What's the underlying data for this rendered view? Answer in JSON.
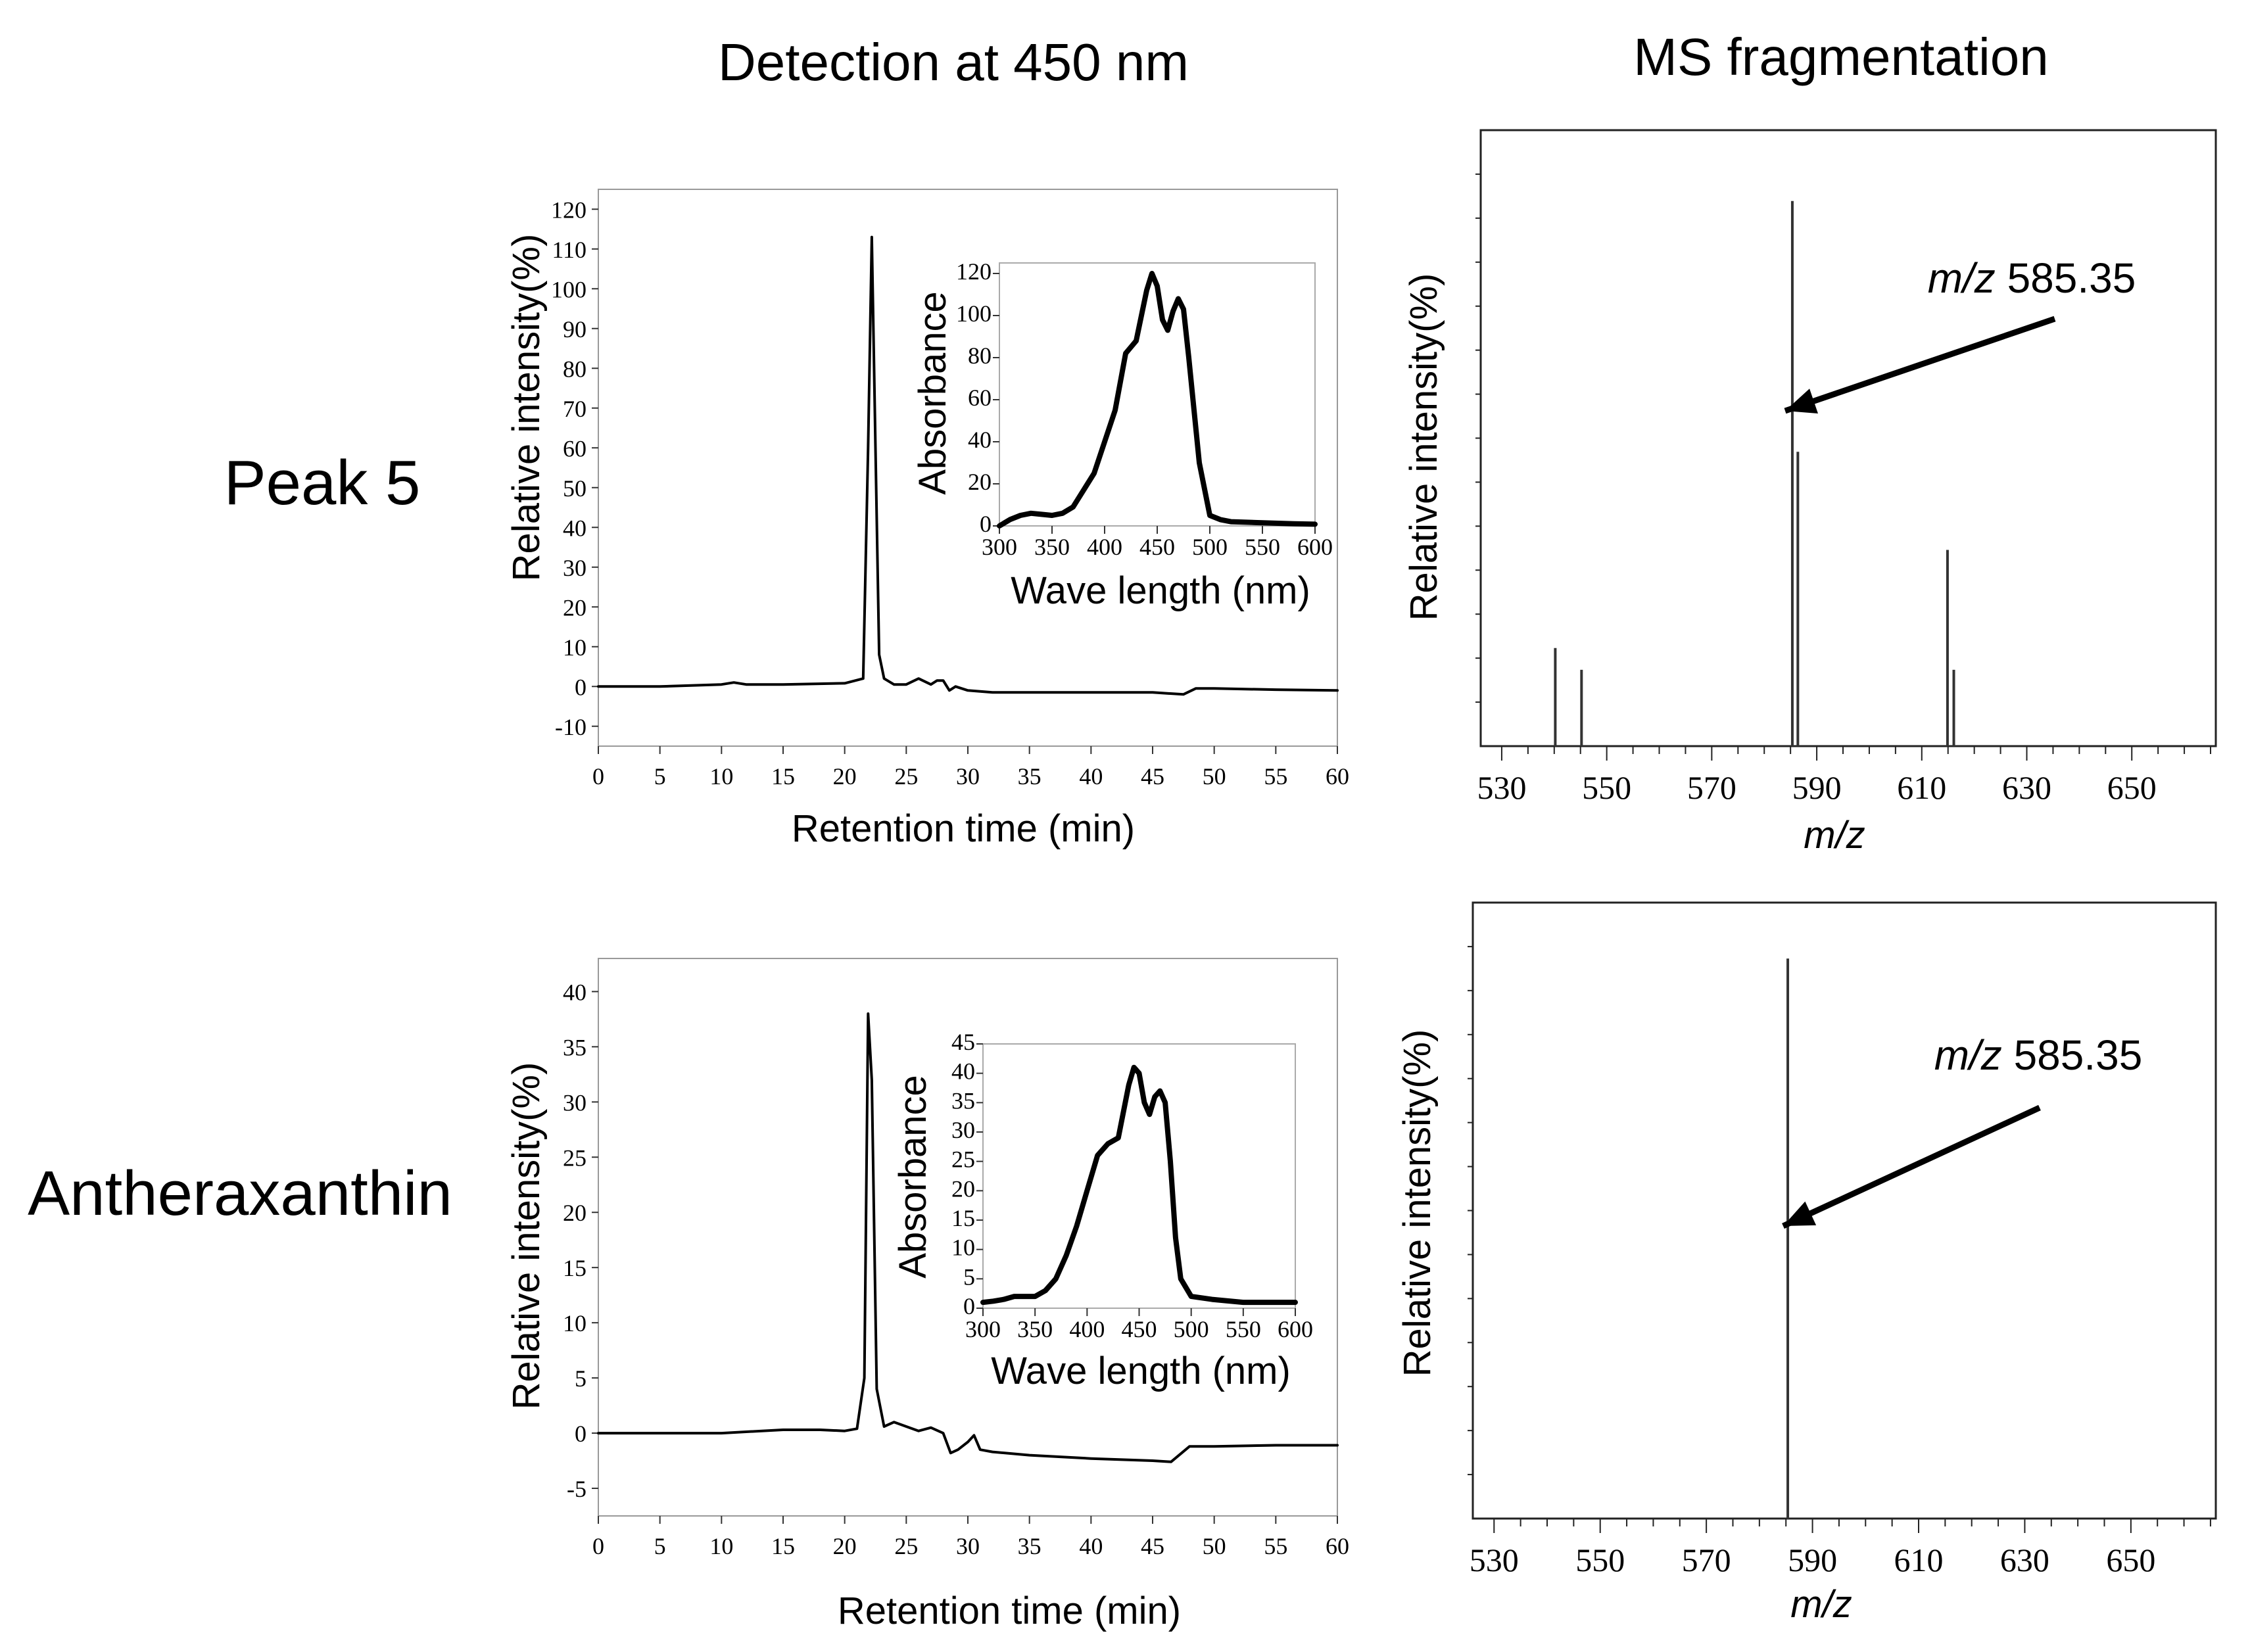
{
  "headings": {
    "left": "Detection at 450 nm",
    "right": "MS fragmentation"
  },
  "rows": [
    {
      "label": "Peak 5"
    },
    {
      "label": "Antheraxanthin"
    }
  ],
  "chart_data": [
    {
      "id": "hplc-peak5",
      "type": "line",
      "title": "Detection at 450 nm",
      "xlabel": "Retention time (min)",
      "ylabel": "Relative intensity(%)",
      "xlim": [
        0,
        60
      ],
      "ylim": [
        -15,
        125
      ],
      "xticks": [
        0,
        5,
        10,
        15,
        20,
        25,
        30,
        35,
        40,
        45,
        50,
        55,
        60
      ],
      "yticks": [
        -10,
        0,
        10,
        20,
        30,
        40,
        50,
        60,
        70,
        80,
        90,
        100,
        110,
        120
      ],
      "x": [
        0,
        5,
        10,
        11,
        12,
        15,
        20,
        21.5,
        21.9,
        22.2,
        22.5,
        22.8,
        23.2,
        24,
        25,
        26,
        27,
        27.5,
        28,
        28.5,
        29,
        30,
        32,
        35,
        40,
        45,
        47.5,
        48.5,
        50,
        55,
        60
      ],
      "y": [
        0,
        0,
        0.5,
        1,
        0.5,
        0.5,
        0.8,
        2,
        60,
        113,
        60,
        8,
        2,
        0.5,
        0.5,
        2,
        0.5,
        1.5,
        1.5,
        -1,
        0,
        -1,
        -1.5,
        -1.5,
        -1.5,
        -1.5,
        -2,
        -0.5,
        -0.5,
        -0.8,
        -1
      ]
    },
    {
      "id": "uv-peak5",
      "type": "line",
      "inset": true,
      "xlabel": "Wave length (nm)",
      "ylabel": "Absorbance",
      "xlim": [
        300,
        600
      ],
      "ylim": [
        0,
        125
      ],
      "xticks": [
        300,
        350,
        400,
        450,
        500,
        550,
        600
      ],
      "yticks": [
        0,
        20,
        40,
        60,
        80,
        100,
        120
      ],
      "x": [
        300,
        310,
        320,
        330,
        340,
        350,
        360,
        370,
        380,
        390,
        400,
        410,
        420,
        425,
        430,
        440,
        445,
        450,
        455,
        460,
        465,
        470,
        475,
        480,
        485,
        490,
        500,
        510,
        520,
        550,
        580,
        600
      ],
      "y": [
        0,
        3,
        5,
        6,
        5.5,
        5,
        6,
        9,
        17,
        25,
        40,
        55,
        82,
        85,
        88,
        112,
        120,
        114,
        98,
        93,
        102,
        108,
        103,
        80,
        55,
        30,
        5,
        3,
        2,
        1.5,
        1,
        0.8
      ]
    },
    {
      "id": "ms-peak5",
      "type": "bar",
      "title": "MS fragmentation",
      "xlabel": "m/z",
      "ylabel": "Relative intensity(%)",
      "xlim": [
        526,
        666
      ],
      "ylim": [
        0,
        113
      ],
      "xticks": [
        530,
        550,
        570,
        590,
        610,
        630,
        650
      ],
      "x": [
        540.2,
        545.2,
        585.35,
        586.4,
        614.9,
        616.1
      ],
      "values": [
        18,
        14,
        100,
        54,
        36,
        14
      ],
      "annotation": {
        "label_italic": "m/z",
        "label": "585.35",
        "target_x": 585.35
      }
    },
    {
      "id": "hplc-antheraxanthin",
      "type": "line",
      "xlabel": "Retention time (min)",
      "ylabel": "Relative intensity(%)",
      "xlim": [
        0,
        60
      ],
      "ylim": [
        -7.5,
        43
      ],
      "xticks": [
        0,
        5,
        10,
        15,
        20,
        25,
        30,
        35,
        40,
        45,
        50,
        55,
        60
      ],
      "yticks": [
        -5,
        0,
        5,
        10,
        15,
        20,
        25,
        30,
        35,
        40
      ],
      "x": [
        0,
        5,
        10,
        15,
        18,
        20,
        21,
        21.6,
        21.9,
        22.2,
        22.6,
        23.2,
        24,
        24.5,
        25,
        26,
        27,
        28,
        28.6,
        29.2,
        30,
        30.5,
        31,
        32,
        35,
        40,
        45,
        46.5,
        48,
        50,
        55,
        60
      ],
      "y": [
        0,
        0,
        0,
        0.3,
        0.3,
        0.2,
        0.4,
        5,
        38,
        32,
        4,
        0.6,
        1,
        0.8,
        0.6,
        0.2,
        0.5,
        0,
        -1.8,
        -1.5,
        -0.8,
        -0.2,
        -1.5,
        -1.7,
        -2,
        -2.3,
        -2.5,
        -2.6,
        -1.2,
        -1.2,
        -1.1,
        -1.1
      ]
    },
    {
      "id": "uv-antheraxanthin",
      "type": "line",
      "inset": true,
      "xlabel": "Wave length (nm)",
      "ylabel": "Absorbance",
      "xlim": [
        300,
        600
      ],
      "ylim": [
        0,
        45
      ],
      "xticks": [
        300,
        350,
        400,
        450,
        500,
        550,
        600
      ],
      "yticks": [
        0,
        5,
        10,
        15,
        20,
        25,
        30,
        35,
        40,
        45
      ],
      "x": [
        300,
        310,
        320,
        330,
        340,
        350,
        360,
        370,
        380,
        390,
        400,
        410,
        420,
        425,
        430,
        440,
        445,
        450,
        455,
        460,
        465,
        470,
        475,
        480,
        485,
        490,
        500,
        520,
        550,
        600
      ],
      "y": [
        1,
        1.2,
        1.5,
        2,
        2,
        2,
        3,
        5,
        9,
        14,
        20,
        26,
        28,
        28.5,
        29,
        38,
        41,
        40,
        35,
        33,
        36,
        37,
        35,
        25,
        12,
        5,
        2,
        1.5,
        1,
        1
      ]
    },
    {
      "id": "ms-antheraxanthin",
      "type": "bar",
      "xlabel": "m/z",
      "ylabel": "Relative intensity(%)",
      "xlim": [
        526,
        666
      ],
      "ylim": [
        0,
        110
      ],
      "xticks": [
        530,
        550,
        570,
        590,
        610,
        630,
        650
      ],
      "x": [
        585.35
      ],
      "values": [
        100
      ],
      "annotation": {
        "label_italic": "m/z",
        "label": "585.35",
        "target_x": 585.35
      }
    }
  ]
}
